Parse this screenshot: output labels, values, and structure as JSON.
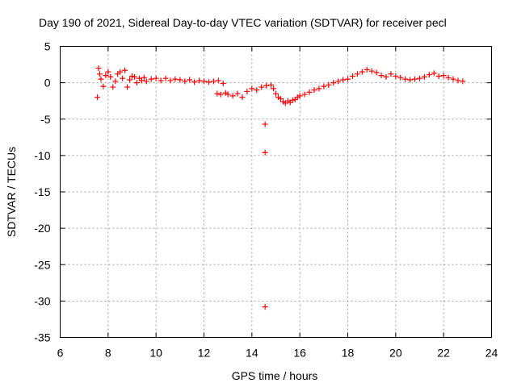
{
  "chart_data": {
    "type": "scatter",
    "title": "Day 190 of 2021, Sidereal Day-to-day VTEC variation (SDTVAR) for receiver pecl",
    "xlabel": "GPS time / hours",
    "ylabel": "SDTVAR / TECUs",
    "xlim": [
      6,
      24
    ],
    "ylim": [
      -35,
      5
    ],
    "xticks": [
      6,
      8,
      10,
      12,
      14,
      16,
      18,
      20,
      22,
      24
    ],
    "yticks": [
      5,
      0,
      -5,
      -10,
      -15,
      -20,
      -25,
      -30,
      -35
    ],
    "xtick_labels": [
      "6",
      "8",
      "10",
      "12",
      "14",
      "16",
      "18",
      "20",
      "22",
      "24"
    ],
    "ytick_labels": [
      "5",
      "0",
      "-5",
      "-10",
      "-15",
      "-20",
      "-25",
      "-30",
      "-35"
    ],
    "grid": true,
    "marker": "+",
    "series": [
      {
        "name": "SDTVAR",
        "color": "#ff0000",
        "x": [
          7.55,
          7.6,
          7.65,
          7.7,
          7.8,
          7.9,
          8.0,
          8.1,
          8.2,
          8.3,
          8.4,
          8.5,
          8.6,
          8.7,
          8.8,
          8.9,
          9.0,
          9.1,
          9.2,
          9.3,
          9.4,
          9.5,
          9.6,
          9.8,
          10.0,
          10.2,
          10.4,
          10.6,
          10.8,
          11.0,
          11.2,
          11.4,
          11.6,
          11.8,
          12.0,
          12.2,
          12.4,
          12.6,
          12.8,
          12.55,
          12.7,
          12.9,
          13.0,
          13.2,
          13.4,
          13.6,
          13.8,
          14.0,
          14.2,
          14.4,
          14.6,
          14.55,
          14.55,
          14.55,
          14.8,
          14.9,
          15.0,
          15.1,
          15.2,
          15.3,
          15.4,
          15.5,
          15.6,
          15.7,
          15.8,
          15.9,
          16.0,
          16.2,
          16.4,
          16.6,
          16.8,
          17.0,
          17.2,
          17.4,
          17.6,
          17.8,
          18.0,
          18.2,
          18.4,
          18.6,
          18.8,
          19.0,
          19.2,
          19.4,
          19.6,
          19.8,
          20.0,
          20.2,
          20.4,
          20.6,
          20.8,
          21.0,
          21.2,
          21.4,
          21.6,
          21.8,
          22.0,
          22.2,
          22.4,
          22.6,
          22.8
        ],
        "y": [
          -2.0,
          2.0,
          1.2,
          0.5,
          -0.5,
          1.0,
          1.5,
          0.8,
          -0.6,
          0.2,
          1.2,
          1.5,
          0.6,
          1.7,
          -0.6,
          0.4,
          0.9,
          0.8,
          0.0,
          0.6,
          0.3,
          0.7,
          0.2,
          0.5,
          0.6,
          0.3,
          0.6,
          0.3,
          0.5,
          0.4,
          0.2,
          0.4,
          0.1,
          0.3,
          0.2,
          0.1,
          0.2,
          0.3,
          -0.1,
          -1.5,
          -1.6,
          -1.4,
          -1.6,
          -1.8,
          -1.5,
          -2.0,
          -1.2,
          -0.8,
          -1.0,
          -0.6,
          -0.4,
          -5.7,
          -9.6,
          -30.8,
          -0.3,
          -0.8,
          -1.5,
          -2.0,
          -2.2,
          -2.6,
          -2.8,
          -2.5,
          -2.7,
          -2.4,
          -2.3,
          -2.0,
          -1.8,
          -1.6,
          -1.3,
          -1.0,
          -0.8,
          -0.5,
          -0.3,
          0.0,
          0.2,
          0.4,
          0.5,
          0.9,
          1.2,
          1.5,
          1.8,
          1.6,
          1.4,
          1.0,
          0.8,
          1.2,
          0.9,
          0.7,
          0.5,
          0.4,
          0.5,
          0.6,
          0.8,
          1.1,
          1.3,
          0.9,
          1.0,
          0.7,
          0.5,
          0.3,
          0.2
        ]
      }
    ]
  }
}
